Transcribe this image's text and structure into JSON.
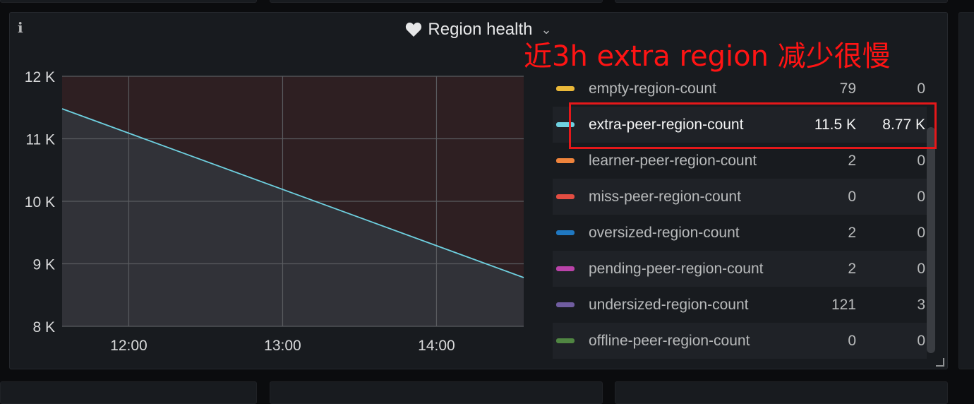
{
  "panel": {
    "info_icon": "info-icon",
    "title": "Region health",
    "title_icon": "heart-icon",
    "menu_icon": "chevron-down-icon"
  },
  "annotation": {
    "text": "近3h extra region 减少很慢",
    "color": "#ff1414"
  },
  "chart_data": {
    "type": "area",
    "x_ticks": [
      "12:00",
      "13:00",
      "14:00"
    ],
    "y_ticks": [
      "8 K",
      "9 K",
      "10 K",
      "11 K",
      "12 K"
    ],
    "ylim": [
      8000,
      12000
    ],
    "threshold_region_color": "#2e1f22",
    "series": [
      {
        "name": "extra-peer-region-count",
        "color": "#6ed0e0",
        "x": [
          "11:34",
          "14:34"
        ],
        "values": [
          11480,
          8780
        ]
      }
    ]
  },
  "legend": {
    "rows": [
      {
        "name": "empty-region-count",
        "current": "79",
        "last": "0",
        "color": "#eab839"
      },
      {
        "name": "extra-peer-region-count",
        "current": "11.5 K",
        "last": "8.77 K",
        "color": "#6ed0e0",
        "highlighted": true
      },
      {
        "name": "learner-peer-region-count",
        "current": "2",
        "last": "0",
        "color": "#ef843c"
      },
      {
        "name": "miss-peer-region-count",
        "current": "0",
        "last": "0",
        "color": "#e24d42"
      },
      {
        "name": "oversized-region-count",
        "current": "2",
        "last": "0",
        "color": "#1f78c1"
      },
      {
        "name": "pending-peer-region-count",
        "current": "2",
        "last": "0",
        "color": "#ba43a9"
      },
      {
        "name": "undersized-region-count",
        "current": "121",
        "last": "3",
        "color": "#705da0"
      },
      {
        "name": "offline-peer-region-count",
        "current": "0",
        "last": "0",
        "color": "#508642"
      }
    ]
  }
}
